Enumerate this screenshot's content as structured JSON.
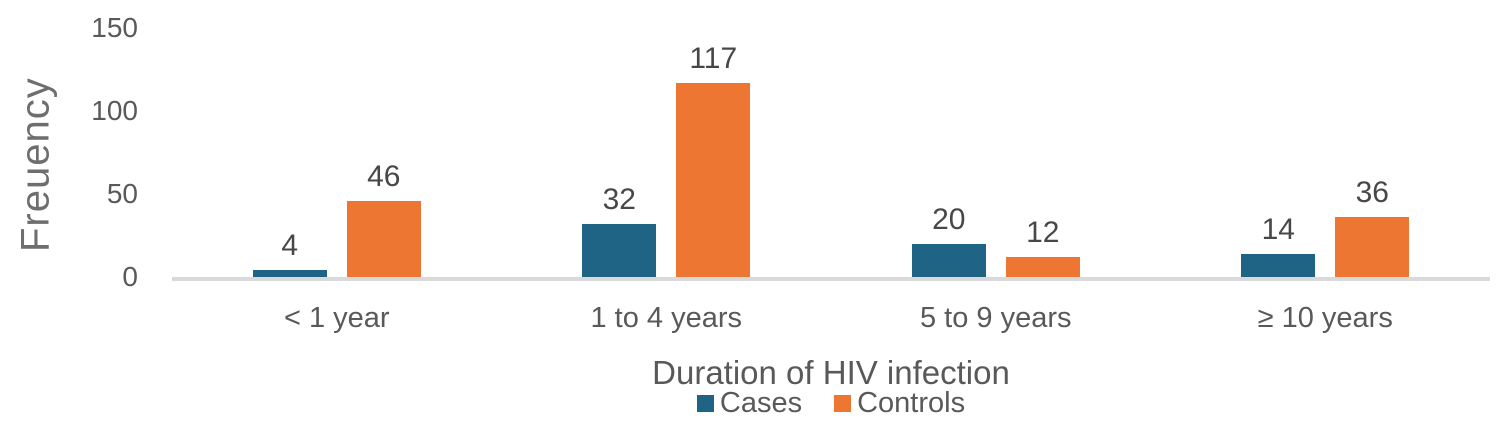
{
  "chart_data": {
    "type": "bar",
    "categories": [
      "< 1 year",
      "1 to 4 years",
      "5 to 9 years",
      "≥ 10 years"
    ],
    "series": [
      {
        "name": "Cases",
        "values": [
          4,
          32,
          20,
          14
        ],
        "color": "#1F6484"
      },
      {
        "name": "Controls",
        "values": [
          46,
          117,
          12,
          36
        ],
        "color": "#ED7633"
      }
    ],
    "title": "",
    "xlabel": "Duration of HIV infection",
    "ylabel": "Freuency",
    "ylim": [
      0,
      150
    ],
    "yticks": [
      0,
      50,
      100,
      150
    ],
    "grid": false,
    "legend_position": "bottom-center",
    "data_labels": true
  },
  "styles": {
    "axis_line_color": "#D9D9D9",
    "tick_text_color": "#595959",
    "category_text_color": "#595959",
    "data_label_color": "#474747",
    "x_title_color": "#595959",
    "y_title_color": "#6E6E6E",
    "legend_text_color": "#595959"
  }
}
